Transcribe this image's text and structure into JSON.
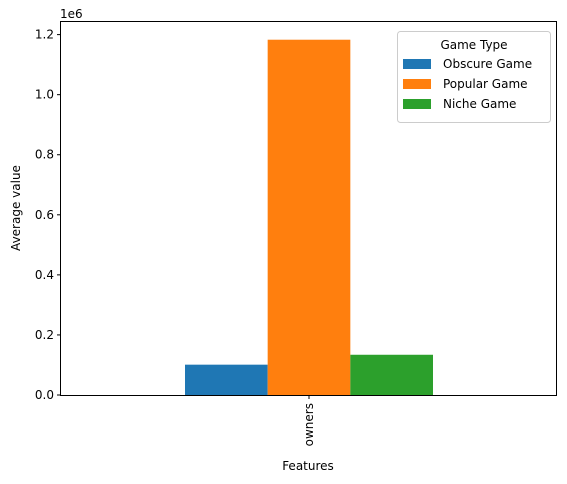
{
  "chart_data": {
    "type": "bar",
    "categories": [
      "owners"
    ],
    "series": [
      {
        "name": "Obscure Game",
        "values": [
          101000
        ],
        "color": "#1f77b4"
      },
      {
        "name": "Popular Game",
        "values": [
          1183000
        ],
        "color": "#ff7f0e"
      },
      {
        "name": "Niche Game",
        "values": [
          134000
        ],
        "color": "#2ca02c"
      }
    ],
    "xlabel": "Features",
    "ylabel": "Average value",
    "ylim": [
      0,
      1242000
    ],
    "yticks": [
      0,
      0.2,
      0.4,
      0.6,
      0.8,
      1.0,
      1.2
    ],
    "ytick_labels": [
      "0.0",
      "0.2",
      "0.4",
      "0.6",
      "0.8",
      "1.0",
      "1.2"
    ],
    "y_offset_label": "1e6",
    "legend": {
      "title": "Game Type",
      "placement": "top-right"
    },
    "grid": false
  }
}
